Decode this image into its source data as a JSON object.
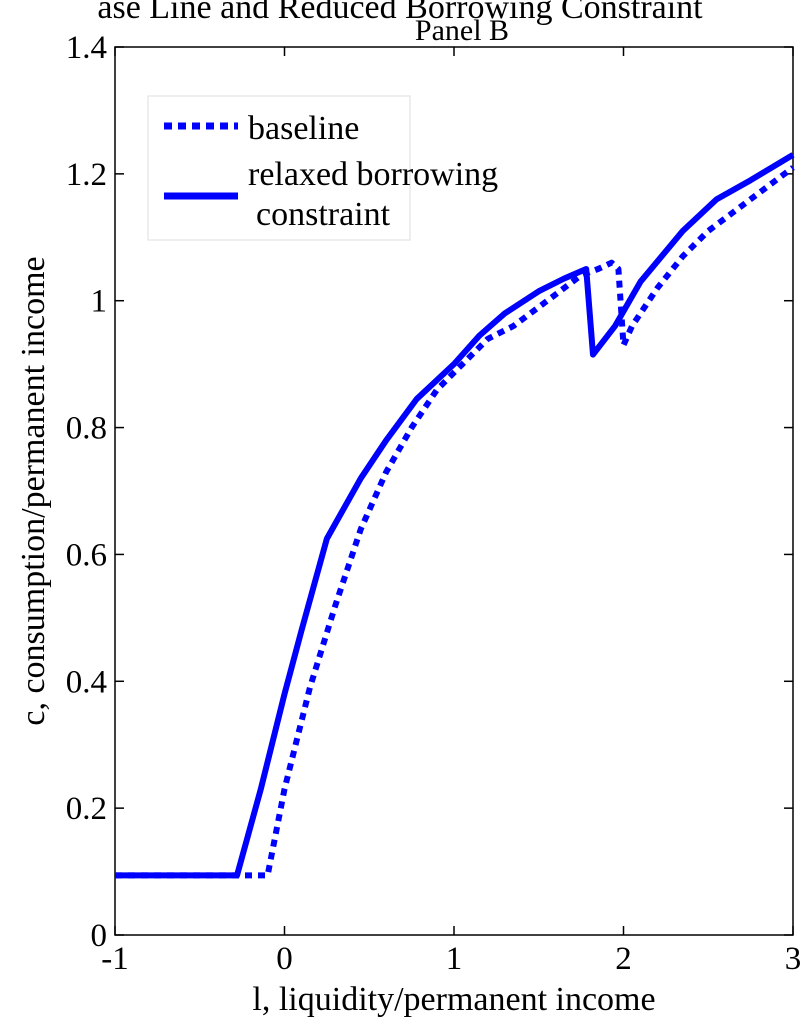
{
  "figure": {
    "top_title_fragment": "ase Line and Reduced Borrowing Constraint",
    "panel_title": "Panel B"
  },
  "chart_data": {
    "type": "line",
    "title": "Panel B",
    "xlabel": "l, liquidity/permanent income",
    "ylabel": "c, consumption/permanent income",
    "xlim": [
      -1,
      3
    ],
    "ylim": [
      0,
      1.4
    ],
    "xticks": [
      -1,
      0,
      1,
      2,
      3
    ],
    "xtick_labels": [
      "-1",
      "0",
      "1",
      "2",
      "3"
    ],
    "yticks": [
      0,
      0.2,
      0.4,
      0.6,
      0.8,
      1,
      1.2,
      1.4
    ],
    "ytick_labels": [
      "0",
      "0.2",
      "0.4",
      "0.6",
      "0.8",
      "1",
      "1.2",
      "1.4"
    ],
    "grid": false,
    "legend_position": "top-left",
    "series": [
      {
        "name": "baseline",
        "style": "dotted",
        "color": "#0000ff",
        "x": [
          -1.0,
          -0.1,
          0.0,
          0.15,
          0.3,
          0.45,
          0.6,
          0.75,
          0.9,
          1.05,
          1.2,
          1.35,
          1.5,
          1.65,
          1.75,
          1.85,
          1.93,
          1.97,
          2.0,
          2.05,
          2.2,
          2.35,
          2.5,
          2.65,
          2.8,
          2.95,
          3.0
        ],
        "y": [
          0.094,
          0.094,
          0.23,
          0.39,
          0.52,
          0.64,
          0.73,
          0.8,
          0.86,
          0.9,
          0.94,
          0.96,
          0.99,
          1.02,
          1.04,
          1.05,
          1.06,
          1.05,
          0.93,
          0.96,
          1.02,
          1.07,
          1.11,
          1.14,
          1.17,
          1.2,
          1.21
        ]
      },
      {
        "name": "relaxed borrowing constraint",
        "style": "solid",
        "color": "#0000ff",
        "x": [
          -1.0,
          -0.28,
          -0.14,
          0.0,
          0.1,
          0.25,
          0.45,
          0.6,
          0.78,
          1.0,
          1.15,
          1.3,
          1.5,
          1.65,
          1.78,
          1.82,
          1.95,
          2.1,
          2.35,
          2.55,
          2.75,
          3.0
        ],
        "y": [
          0.094,
          0.094,
          0.23,
          0.38,
          0.48,
          0.625,
          0.72,
          0.78,
          0.845,
          0.9,
          0.945,
          0.98,
          1.015,
          1.035,
          1.05,
          0.915,
          0.96,
          1.03,
          1.11,
          1.16,
          1.19,
          1.23
        ]
      }
    ],
    "legend": {
      "entries": [
        {
          "label": "baseline",
          "style": "dotted"
        },
        {
          "label_line1": "relaxed borrowing",
          "label_line2": "constraint",
          "style": "solid"
        }
      ]
    }
  }
}
